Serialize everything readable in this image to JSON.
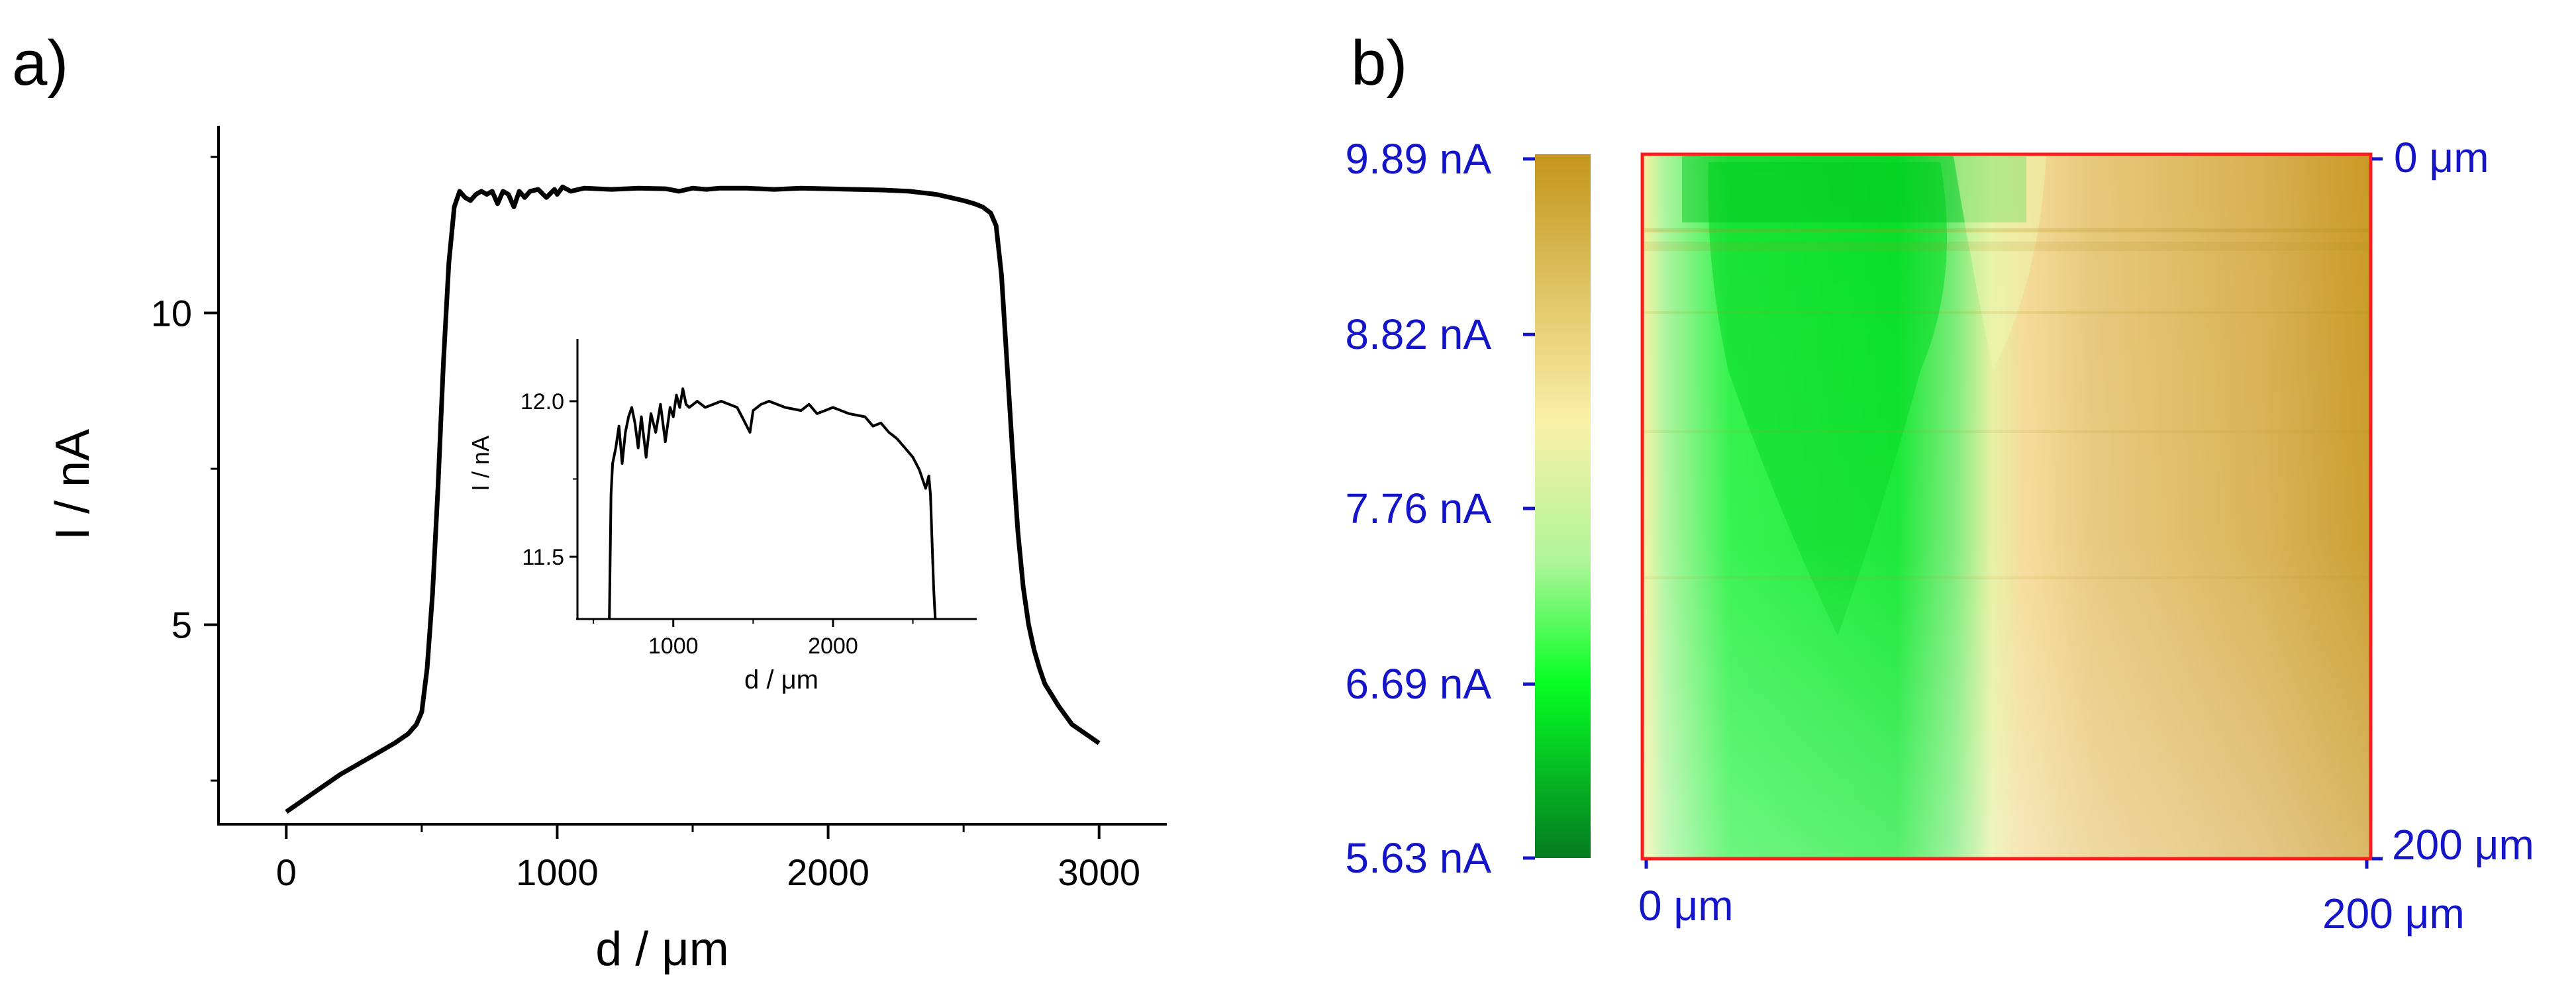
{
  "colors": {
    "axis_a": "#000000",
    "axis_b": "#1414c8",
    "frame": "#ff1c1c",
    "cbar_low": "#057a22",
    "cbar_mid_green": "#07ff24",
    "cbar_mid_pale": "#faf0a8",
    "cbar_high": "#c4951c"
  },
  "chart_data": [
    {
      "panel": "a)",
      "type": "line",
      "xlabel": "d / μm",
      "ylabel": "I / nA",
      "xlim": [
        -250,
        3250
      ],
      "ylim": [
        1.8,
        13.0
      ],
      "xticks": [
        "0",
        "1000",
        "2000",
        "3000"
      ],
      "yticks": [
        "5",
        "10"
      ],
      "ytick_values": [
        5,
        10
      ],
      "series": [
        {
          "name": "I",
          "x": [
            0,
            100,
            200,
            300,
            400,
            450,
            480,
            500,
            520,
            540,
            560,
            580,
            600,
            620,
            640,
            660,
            680,
            700,
            720,
            740,
            760,
            780,
            800,
            820,
            840,
            860,
            880,
            900,
            930,
            960,
            990,
            1000,
            1020,
            1050,
            1080,
            1100,
            1200,
            1300,
            1400,
            1450,
            1500,
            1550,
            1600,
            1700,
            1800,
            1900,
            2000,
            2100,
            2200,
            2300,
            2400,
            2450,
            2500,
            2540,
            2570,
            2600,
            2620,
            2640,
            2660,
            2680,
            2700,
            2720,
            2740,
            2760,
            2780,
            2800,
            2850,
            2900,
            2950,
            3000
          ],
          "y": [
            2.0,
            2.3,
            2.6,
            2.85,
            3.1,
            3.25,
            3.4,
            3.6,
            4.3,
            5.5,
            7.2,
            9.2,
            10.8,
            11.7,
            11.95,
            11.85,
            11.8,
            11.9,
            11.95,
            11.9,
            11.95,
            11.75,
            11.95,
            11.9,
            11.7,
            11.95,
            11.85,
            11.95,
            11.98,
            11.85,
            11.98,
            11.9,
            12.02,
            11.95,
            11.98,
            12.0,
            11.98,
            12.0,
            11.99,
            11.95,
            12.0,
            11.98,
            12.0,
            12.0,
            11.98,
            12.0,
            11.99,
            11.98,
            11.97,
            11.95,
            11.9,
            11.85,
            11.8,
            11.75,
            11.7,
            11.6,
            11.4,
            10.6,
            9.2,
            7.8,
            6.5,
            5.6,
            5.0,
            4.6,
            4.3,
            4.05,
            3.7,
            3.4,
            3.25,
            3.1
          ]
        }
      ]
    },
    {
      "panel": "a) inset",
      "type": "line",
      "xlabel": "d / μm",
      "ylabel": "I / nA",
      "xlim": [
        400,
        2900
      ],
      "ylim": [
        11.3,
        12.2
      ],
      "xticks": [
        "1000",
        "2000"
      ],
      "xtick_values": [
        1000,
        2000
      ],
      "yticks": [
        "11.5",
        "12.0"
      ],
      "ytick_values": [
        11.5,
        12.0
      ],
      "series": [
        {
          "name": "I",
          "x": [
            600,
            610,
            620,
            640,
            660,
            680,
            700,
            720,
            740,
            760,
            780,
            800,
            830,
            860,
            890,
            920,
            950,
            980,
            1000,
            1020,
            1040,
            1060,
            1080,
            1100,
            1150,
            1200,
            1300,
            1400,
            1450,
            1480,
            1500,
            1550,
            1600,
            1700,
            1800,
            1850,
            1900,
            1950,
            2000,
            2100,
            2200,
            2250,
            2300,
            2350,
            2400,
            2450,
            2500,
            2540,
            2560,
            2580,
            2600,
            2610,
            2620,
            2630,
            2640
          ],
          "y": [
            11.3,
            11.7,
            11.8,
            11.85,
            11.92,
            11.8,
            11.9,
            11.95,
            11.98,
            11.93,
            11.85,
            11.95,
            11.82,
            11.96,
            11.9,
            11.99,
            11.87,
            11.98,
            11.95,
            12.02,
            11.98,
            12.04,
            11.99,
            11.98,
            12.0,
            11.98,
            12.0,
            11.98,
            11.93,
            11.9,
            11.97,
            11.99,
            12.0,
            11.98,
            11.97,
            11.99,
            11.96,
            11.97,
            11.98,
            11.96,
            11.95,
            11.92,
            11.93,
            11.9,
            11.88,
            11.85,
            11.82,
            11.78,
            11.75,
            11.72,
            11.76,
            11.7,
            11.55,
            11.4,
            11.3
          ]
        }
      ]
    },
    {
      "panel": "b)",
      "type": "heatmap",
      "colorbar_ticks": [
        "9.89 nA",
        "8.82 nA",
        "7.76 nA",
        "6.69 nA",
        "5.63 nA"
      ],
      "colorbar_values": [
        9.89,
        8.82,
        7.76,
        6.69,
        5.63
      ],
      "x_ticks": [
        "0 μm",
        "200 μm"
      ],
      "y_ticks": [
        "0 μm",
        "200 μm"
      ],
      "description_values": {
        "left_region": "low-mid current (green)",
        "right_region": "high current (gold)"
      }
    }
  ]
}
